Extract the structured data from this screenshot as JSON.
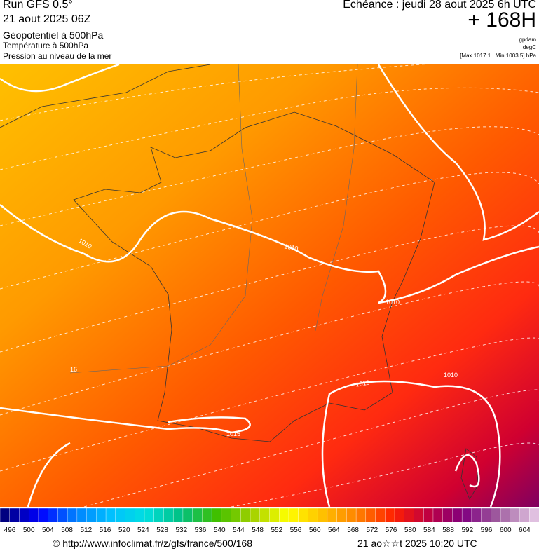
{
  "header": {
    "run": "Run GFS 0.5°",
    "run_date": "21 aout 2025 06Z",
    "field1": "Géopotentiel à 500hPa",
    "field2": "Température à 500hPa",
    "field3": "Pression au niveau de la mer",
    "valid": "Echéance : jeudi 28 aout 2025 6h UTC",
    "lead": "+ 168H",
    "unit1": "gpdam",
    "unit2": "degC",
    "range": "[Max 1017.1 | Min 1003.5] hPa"
  },
  "map": {
    "contour_labels": [
      "1010",
      "1010",
      "1010",
      "1010",
      "1010",
      "1015",
      "16"
    ]
  },
  "legend": {
    "labels": [
      496,
      500,
      504,
      508,
      512,
      516,
      520,
      524,
      528,
      532,
      536,
      540,
      544,
      548,
      552,
      556,
      560,
      564,
      568,
      572,
      576,
      580,
      584,
      588,
      592,
      596,
      600,
      604
    ],
    "colors": [
      "#000080",
      "#0000ff",
      "#0080ff",
      "#00c0ff",
      "#00e0e0",
      "#00c080",
      "#40c000",
      "#a0d000",
      "#ffff00",
      "#ffc000",
      "#ff8000",
      "#ff2000",
      "#c00040",
      "#800080",
      "#a060a0",
      "#e0c0e0"
    ]
  },
  "footer": {
    "url": "© http://www.infoclimat.fr/z/gfs/france/500/168",
    "stamp": "21 ao☆☆t 2025 10:20 UTC"
  }
}
